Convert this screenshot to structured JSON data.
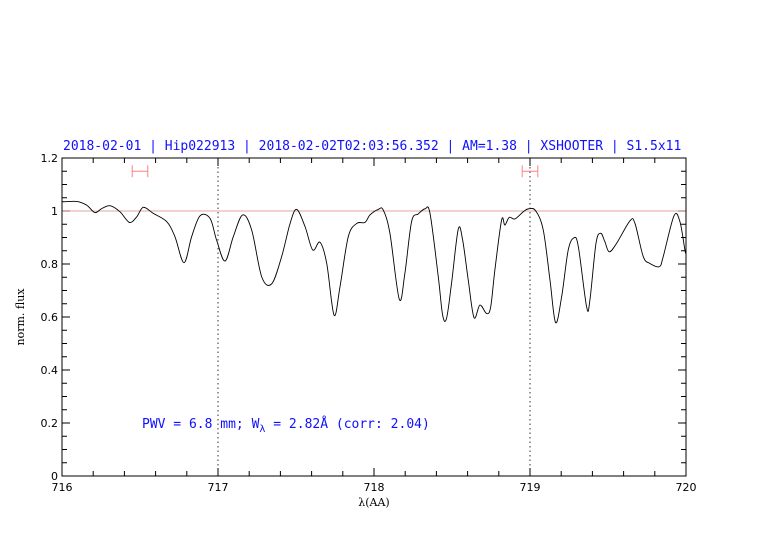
{
  "chart_data": {
    "type": "line",
    "title": "2018-02-01 | Hip022913 | 2018-02-02T02:03:56.352 | AM=1.38 | XSHOOTER | S1.5x11",
    "xlabel": "λ(AA)",
    "ylabel": "norm. flux",
    "xlim": [
      716,
      720
    ],
    "ylim": [
      0,
      1.2
    ],
    "xticks": [
      "716",
      "717",
      "718",
      "719",
      "720"
    ],
    "yticks": [
      "0",
      "0.2",
      "0.4",
      "0.6",
      "0.8",
      "1",
      "1.2"
    ],
    "grid": false,
    "annotation": {
      "prefix": "PWV = 6.8 mm; W",
      "subscript": "λ",
      "suffix": " = 2.82Å (corr: 2.04)"
    },
    "reference_line": {
      "y": 1,
      "color": "#d88888"
    },
    "dotted_vlines": [
      717,
      719
    ],
    "ranges": [
      {
        "x": [
          716.45,
          716.55
        ],
        "y": 1.15,
        "color": "#ff8080"
      },
      {
        "x": [
          718.95,
          719.05
        ],
        "y": 1.15,
        "color": "#ff8080"
      }
    ],
    "series": [
      {
        "color": "#000000",
        "x": [
          716.0,
          716.019,
          716.094,
          716.158,
          716.211,
          716.254,
          716.308,
          716.372,
          716.432,
          716.479,
          716.521,
          716.585,
          716.671,
          716.724,
          716.782,
          716.831,
          716.885,
          716.949,
          716.991,
          717.045,
          717.098,
          717.158,
          717.216,
          717.28,
          717.344,
          717.408,
          717.462,
          717.504,
          717.558,
          717.607,
          717.654,
          717.697,
          717.744,
          717.782,
          717.835,
          717.889,
          717.942,
          717.974,
          718.027,
          718.059,
          718.102,
          718.162,
          718.198,
          718.241,
          718.284,
          718.327,
          718.359,
          718.412,
          718.44,
          718.465,
          718.497,
          718.54,
          718.568,
          718.604,
          718.641,
          718.679,
          718.722,
          718.748,
          718.775,
          718.818,
          718.839,
          718.867,
          718.903,
          718.957,
          718.989,
          719.036,
          719.085,
          719.128,
          719.164,
          719.203,
          719.245,
          719.282,
          719.31,
          719.363,
          719.384,
          719.423,
          719.453,
          719.48,
          719.508,
          719.555,
          719.641,
          719.673,
          719.726,
          719.769,
          719.829,
          719.854,
          719.923,
          719.961,
          719.993,
          720.0
        ],
        "y": [
          1.035,
          1.035,
          1.036,
          1.022,
          0.994,
          1.009,
          1.02,
          0.997,
          0.957,
          0.978,
          1.014,
          0.991,
          0.96,
          0.903,
          0.805,
          0.903,
          0.982,
          0.972,
          0.89,
          0.811,
          0.903,
          0.985,
          0.928,
          0.752,
          0.725,
          0.828,
          0.953,
          1.006,
          0.941,
          0.853,
          0.882,
          0.802,
          0.607,
          0.714,
          0.903,
          0.953,
          0.957,
          0.985,
          1.006,
          1.004,
          0.916,
          0.667,
          0.765,
          0.96,
          0.989,
          1.008,
          0.991,
          0.752,
          0.607,
          0.595,
          0.727,
          0.931,
          0.891,
          0.74,
          0.598,
          0.645,
          0.613,
          0.638,
          0.778,
          0.966,
          0.947,
          0.976,
          0.97,
          0.997,
          1.008,
          1.001,
          0.928,
          0.74,
          0.579,
          0.677,
          0.853,
          0.899,
          0.865,
          0.638,
          0.664,
          0.878,
          0.916,
          0.884,
          0.846,
          0.878,
          0.963,
          0.953,
          0.828,
          0.802,
          0.79,
          0.828,
          0.982,
          0.96,
          0.853,
          0.84
        ]
      }
    ]
  }
}
